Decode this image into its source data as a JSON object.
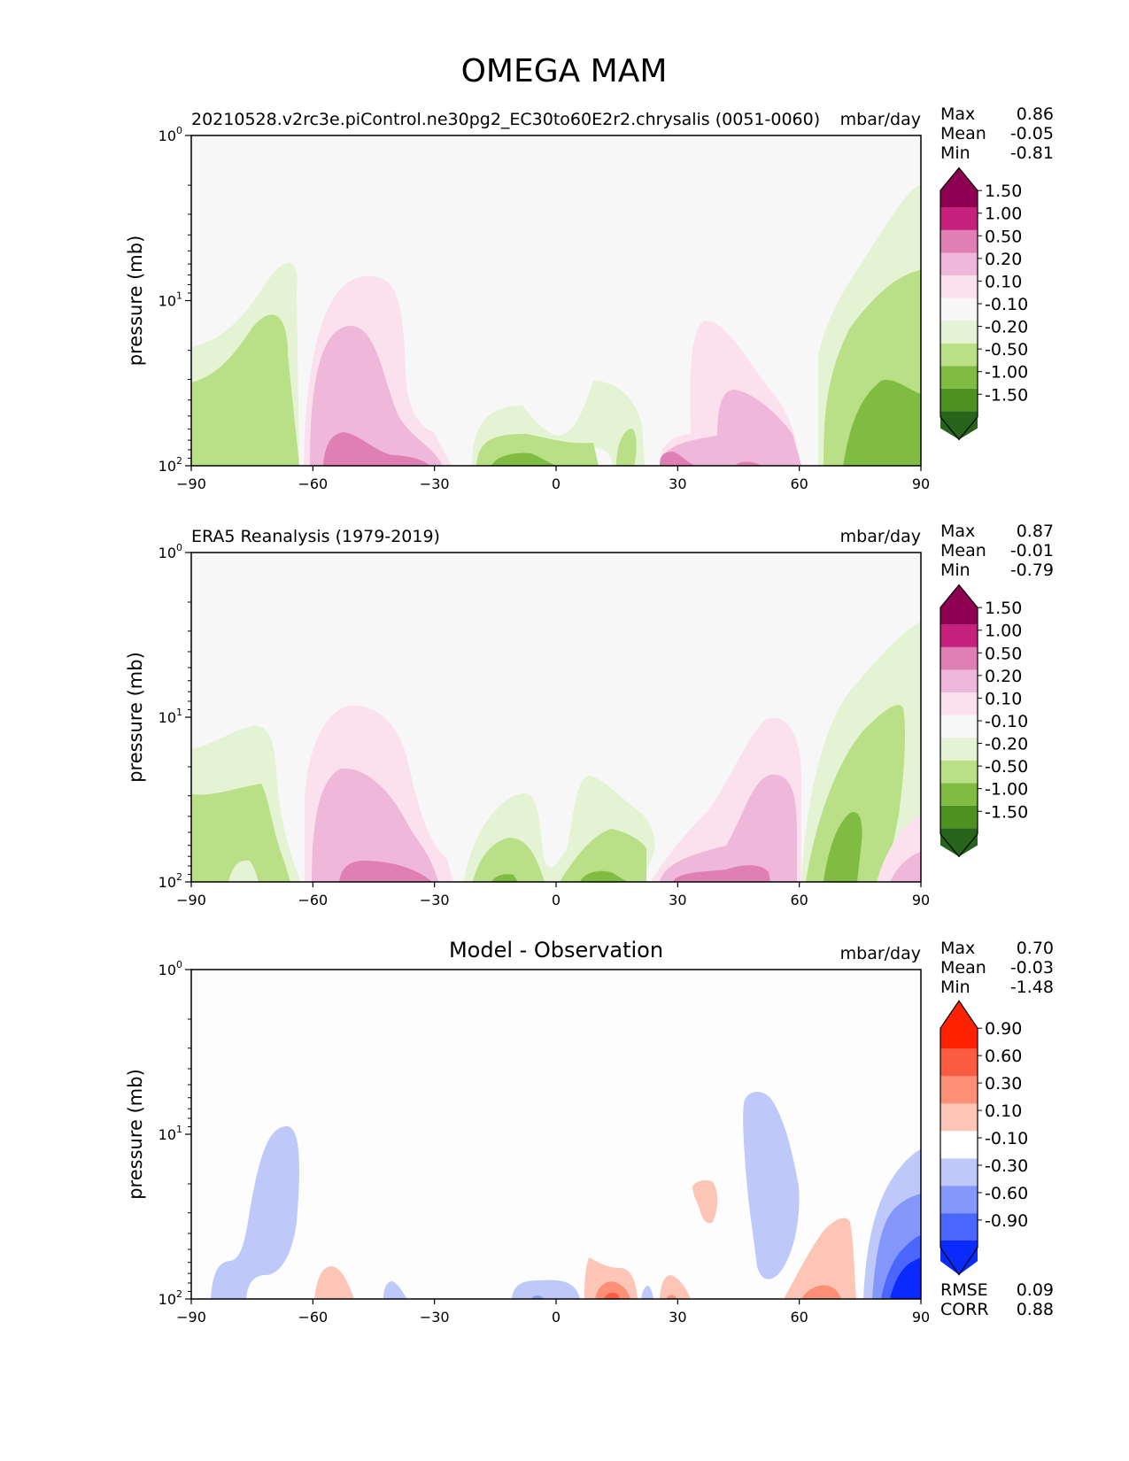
{
  "figure": {
    "title": "OMEGA MAM",
    "ylabel": "pressure (mb)",
    "xticks": [
      "−90",
      "−60",
      "−30",
      "0",
      "30",
      "60",
      "90"
    ],
    "yticks": {
      "base": "10",
      "exps": [
        "0",
        "1",
        "2"
      ]
    }
  },
  "colors": {
    "background_top": "#f7f7f7",
    "background_diff": "#fdfdfd",
    "pink": [
      "#fbe1ee",
      "#efb7d9",
      "#e07fb4",
      "#c7217f",
      "#8e0152"
    ],
    "green": [
      "#e4f3d3",
      "#b9e086",
      "#7fbc41",
      "#4d9221",
      "#276419"
    ],
    "red": [
      "#fdc5b5",
      "#fc8f76",
      "#fb5b40",
      "#ff2200"
    ],
    "blue": [
      "#bec9fa",
      "#8497fb",
      "#4a66fc",
      "#0a2bff"
    ]
  },
  "panels": [
    {
      "left_title": "20210528.v2rc3e.piControl.ne30pg2_EC30to60E2r2.chrysalis (0051-0060)",
      "center_title": "",
      "units": "mbar/day",
      "stats": [
        [
          "Max",
          "0.86"
        ],
        [
          "Mean",
          "-0.05"
        ],
        [
          "Min",
          "-0.81"
        ]
      ],
      "extra_stats": [],
      "colorbar": {
        "labels": [
          "1.50",
          "1.00",
          "0.50",
          "0.20",
          "0.10",
          "-0.10",
          "-0.20",
          "-0.50",
          "-1.00",
          "-1.50"
        ]
      }
    },
    {
      "left_title": "ERA5 Reanalysis (1979-2019)",
      "center_title": "",
      "units": "mbar/day",
      "stats": [
        [
          "Max",
          "0.87"
        ],
        [
          "Mean",
          "-0.01"
        ],
        [
          "Min",
          "-0.79"
        ]
      ],
      "extra_stats": [],
      "colorbar": {
        "labels": [
          "1.50",
          "1.00",
          "0.50",
          "0.20",
          "0.10",
          "-0.10",
          "-0.20",
          "-0.50",
          "-1.00",
          "-1.50"
        ]
      }
    },
    {
      "left_title": "",
      "center_title": "Model - Observation",
      "units": "mbar/day",
      "stats": [
        [
          "Max",
          "0.70"
        ],
        [
          "Mean",
          "-0.03"
        ],
        [
          "Min",
          "-1.48"
        ]
      ],
      "extra_stats": [
        [
          "RMSE",
          "0.09"
        ],
        [
          "CORR",
          "0.88"
        ]
      ],
      "colorbar": {
        "labels": [
          "0.90",
          "0.60",
          "0.30",
          "0.10",
          "-0.10",
          "-0.30",
          "-0.60",
          "-0.90"
        ]
      }
    }
  ],
  "chart_data": [
    {
      "type": "heatmap",
      "title": "20210528.v2rc3e.piControl.ne30pg2_EC30to60E2r2.chrysalis (0051-0060)",
      "units": "mbar/day",
      "xlabel": "",
      "ylabel": "pressure (mb)",
      "xlim": [
        -90,
        90
      ],
      "ylim": [
        100,
        1
      ],
      "yscale": "log",
      "levels": [
        -1.5,
        -1.0,
        -0.5,
        -0.2,
        -0.1,
        0.1,
        0.2,
        0.5,
        1.0,
        1.5
      ],
      "stats": {
        "max": 0.86,
        "mean": -0.05,
        "min": -0.81
      },
      "regions": [
        {
          "level": -0.2,
          "lat_range": [
            -90,
            -64
          ],
          "top_mb": 6.5
        },
        {
          "level": -0.5,
          "lat_range": [
            -90,
            -67
          ],
          "top_mb": 12
        },
        {
          "level": 0.1,
          "lat_range": [
            -62,
            -28
          ],
          "top_mb": 7
        },
        {
          "level": 0.2,
          "lat_range": [
            -61,
            -35
          ],
          "top_mb": 15
        },
        {
          "level": 0.5,
          "lat_range": [
            -57,
            -38
          ],
          "top_mb": 62
        },
        {
          "level": -0.2,
          "lat_range": [
            -21,
            22
          ],
          "top_mb": 32
        },
        {
          "level": -0.5,
          "lat_range": [
            -20,
            18
          ],
          "top_mb": 60
        },
        {
          "level": -1.0,
          "lat_range": [
            -16,
            -3
          ],
          "top_mb": 88
        },
        {
          "level": 0.1,
          "lat_range": [
            25,
            60
          ],
          "top_mb": 13
        },
        {
          "level": 0.2,
          "lat_range": [
            27,
            59
          ],
          "top_mb": 33
        },
        {
          "level": 0.5,
          "lat_range": [
            25,
            35
          ],
          "top_mb": 88
        },
        {
          "level": -0.2,
          "lat_range": [
            64,
            90
          ],
          "top_mb": 2
        },
        {
          "level": -0.5,
          "lat_range": [
            67,
            90
          ],
          "top_mb": 6.5
        },
        {
          "level": -1.0,
          "lat_range": [
            71,
            90
          ],
          "top_mb": 30
        }
      ]
    },
    {
      "type": "heatmap",
      "title": "ERA5 Reanalysis (1979-2019)",
      "units": "mbar/day",
      "xlabel": "",
      "ylabel": "pressure (mb)",
      "xlim": [
        -90,
        90
      ],
      "ylim": [
        100,
        1
      ],
      "yscale": "log",
      "levels": [
        -1.5,
        -1.0,
        -0.5,
        -0.2,
        -0.1,
        0.1,
        0.2,
        0.5,
        1.0,
        1.5
      ],
      "stats": {
        "max": 0.87,
        "mean": -0.01,
        "min": -0.79
      },
      "regions": [
        {
          "level": -0.2,
          "lat_range": [
            -90,
            -63
          ],
          "top_mb": 11
        },
        {
          "level": -0.5,
          "lat_range": [
            -90,
            -66
          ],
          "top_mb": 26
        },
        {
          "level": 0.1,
          "lat_range": [
            -62,
            -28
          ],
          "top_mb": 9
        },
        {
          "level": 0.2,
          "lat_range": [
            -60,
            -35
          ],
          "top_mb": 22
        },
        {
          "level": 0.5,
          "lat_range": [
            -54,
            -33
          ],
          "top_mb": 78
        },
        {
          "level": -0.2,
          "lat_range": [
            -22,
            26
          ],
          "top_mb": 30
        },
        {
          "level": -0.5,
          "lat_range": [
            -20,
            22
          ],
          "top_mb": 45
        },
        {
          "level": -1.0,
          "lat_range": [
            5,
            15
          ],
          "top_mb": 90
        },
        {
          "level": 0.1,
          "lat_range": [
            23,
            60
          ],
          "top_mb": 10.5
        },
        {
          "level": 0.2,
          "lat_range": [
            28,
            58
          ],
          "top_mb": 22
        },
        {
          "level": 0.5,
          "lat_range": [
            30,
            52
          ],
          "top_mb": 82
        },
        {
          "level": -0.2,
          "lat_range": [
            62,
            90
          ],
          "top_mb": 2.6
        },
        {
          "level": -0.5,
          "lat_range": [
            65,
            87
          ],
          "top_mb": 8.5
        },
        {
          "level": -1.0,
          "lat_range": [
            67,
            78
          ],
          "top_mb": 38
        },
        {
          "level": 0.1,
          "lat_range": [
            80,
            90
          ],
          "top_mb": 35
        },
        {
          "level": 0.2,
          "lat_range": [
            82,
            90
          ],
          "top_mb": 55
        }
      ]
    },
    {
      "type": "heatmap",
      "title": "Model - Observation",
      "units": "mbar/day",
      "xlabel": "",
      "ylabel": "pressure (mb)",
      "xlim": [
        -90,
        90
      ],
      "ylim": [
        100,
        1
      ],
      "yscale": "log",
      "levels": [
        -0.9,
        -0.6,
        -0.3,
        -0.1,
        0.1,
        0.3,
        0.6,
        0.9
      ],
      "stats": {
        "max": 0.7,
        "mean": -0.03,
        "min": -1.48,
        "rmse": 0.09,
        "corr": 0.88
      },
      "regions": [
        {
          "level": -0.1,
          "lat_range": [
            -85,
            -64
          ],
          "top_mb": 9
        },
        {
          "level": 0.1,
          "lat_range": [
            -60,
            -50
          ],
          "top_mb": 62
        },
        {
          "level": -0.1,
          "lat_range": [
            -43,
            -37
          ],
          "top_mb": 82
        },
        {
          "level": -0.1,
          "lat_range": [
            -11,
            6
          ],
          "top_mb": 87
        },
        {
          "level": 0.1,
          "lat_range": [
            7,
            26
          ],
          "top_mb": 57
        },
        {
          "level": 0.3,
          "lat_range": [
            9,
            18
          ],
          "top_mb": 85
        },
        {
          "level": 0.1,
          "lat_range": [
            26,
            33
          ],
          "top_mb": 80
        },
        {
          "level": 0.1,
          "lat_range": [
            34,
            40
          ],
          "top_mb": 20
        },
        {
          "level": -0.1,
          "lat_range": [
            46,
            60
          ],
          "top_mb": 6
        },
        {
          "level": 0.1,
          "lat_range": [
            56,
            73
          ],
          "top_mb": 33
        },
        {
          "level": 0.3,
          "lat_range": [
            62,
            70
          ],
          "top_mb": 88
        },
        {
          "level": -0.1,
          "lat_range": [
            76,
            90
          ],
          "top_mb": 12
        },
        {
          "level": -0.3,
          "lat_range": [
            79,
            90
          ],
          "top_mb": 25
        },
        {
          "level": -0.6,
          "lat_range": [
            82,
            90
          ],
          "top_mb": 45
        },
        {
          "level": -0.9,
          "lat_range": [
            85,
            90
          ],
          "top_mb": 60
        }
      ]
    }
  ]
}
